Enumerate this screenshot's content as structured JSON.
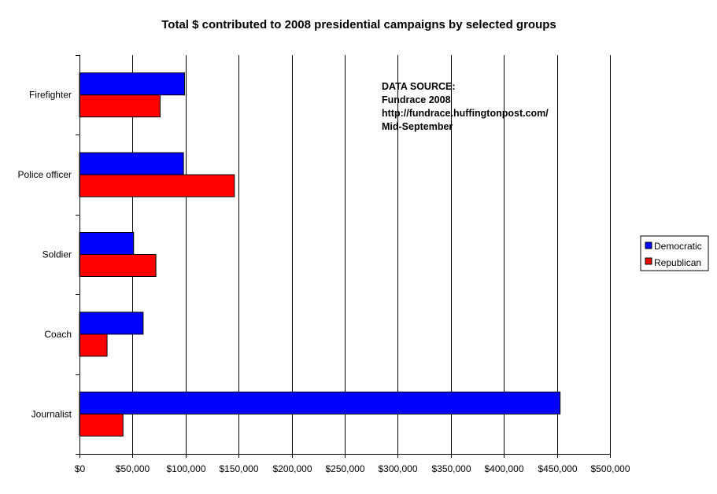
{
  "chart_data": {
    "type": "bar",
    "orientation": "horizontal",
    "title": "Total $ contributed to 2008 presidential campaigns by selected groups",
    "categories": [
      "Firefighter",
      "Police officer",
      "Soldier",
      "Coach",
      "Journalist"
    ],
    "series": [
      {
        "name": "Democratic",
        "color": "#0000ff",
        "values": [
          99000,
          98000,
          51000,
          60000,
          453000
        ]
      },
      {
        "name": "Republican",
        "color": "#ff0000",
        "values": [
          76000,
          146000,
          72000,
          26000,
          41000
        ]
      }
    ],
    "xlim": [
      0,
      500000
    ],
    "x_ticks": [
      0,
      50000,
      100000,
      150000,
      200000,
      250000,
      300000,
      350000,
      400000,
      450000,
      500000
    ],
    "x_tick_labels": [
      "$0",
      "$50,000",
      "$100,000",
      "$150,000",
      "$200,000",
      "$250,000",
      "$300,000",
      "$350,000",
      "$400,000",
      "$450,000",
      "$500,000"
    ],
    "xlabel": "",
    "ylabel": "",
    "grid": "vertical",
    "legend": "right",
    "annotation": {
      "lines": [
        "DATA SOURCE:",
        "Fundrace 2008",
        "http://fundrace.huffingtonpost.com/",
        "Mid-September"
      ]
    }
  }
}
